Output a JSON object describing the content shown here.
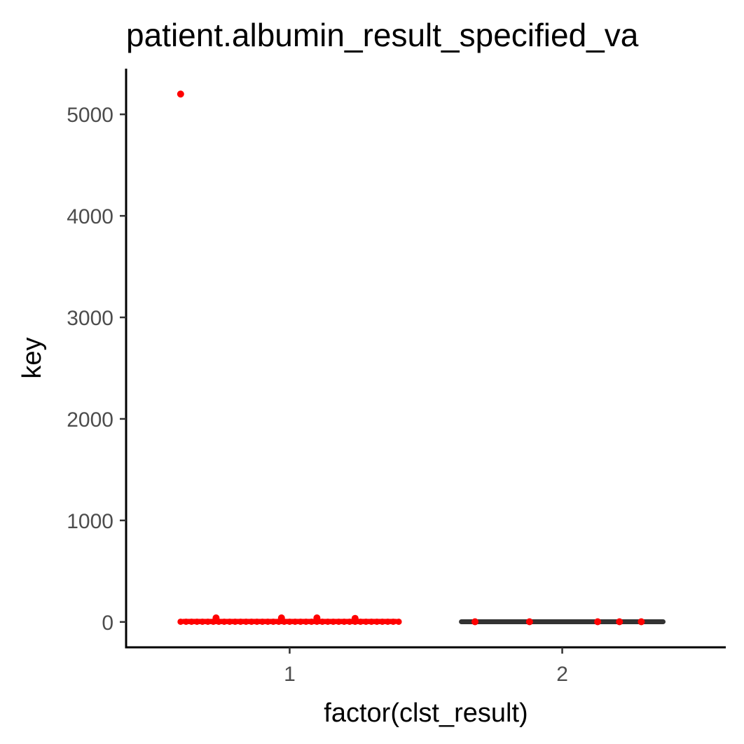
{
  "chart_data": {
    "type": "scatter",
    "title": "patient.albumin_result_specified_va",
    "xlabel": "factor(clst_result)",
    "ylabel": "key",
    "categories": [
      "1",
      "2"
    ],
    "ylim": [
      -250,
      5450
    ],
    "yticks": [
      0,
      1000,
      2000,
      3000,
      4000,
      5000
    ],
    "grid": false,
    "legend": "none",
    "colors": {
      "points": "#ff0000",
      "box": "#333333",
      "axis": "#000000",
      "tick_label": "#4d4d4d"
    },
    "boxes": [
      {
        "category": "1",
        "min": 0,
        "q1": 2,
        "median": 3,
        "q3": 5,
        "max": 10
      },
      {
        "category": "2",
        "min": 0,
        "q1": 1,
        "median": 2,
        "q3": 4,
        "max": 8
      }
    ],
    "series": [
      {
        "category": "1",
        "points": [
          {
            "x": 0.6,
            "y": 5200
          },
          {
            "x": 0.73,
            "y": 40
          },
          {
            "x": 0.97,
            "y": 40
          },
          {
            "x": 1.1,
            "y": 40
          },
          {
            "x": 1.24,
            "y": 35
          }
        ]
      },
      {
        "category": "2",
        "points": [
          {
            "x": 1.68,
            "y": 2
          },
          {
            "x": 1.88,
            "y": 2
          },
          {
            "x": 2.13,
            "y": 2
          },
          {
            "x": 2.21,
            "y": 2
          },
          {
            "x": 2.29,
            "y": 2
          }
        ]
      }
    ],
    "jitter_band": {
      "category": "1",
      "x": [
        0.6,
        1.4
      ],
      "y": [
        0,
        10
      ]
    }
  }
}
